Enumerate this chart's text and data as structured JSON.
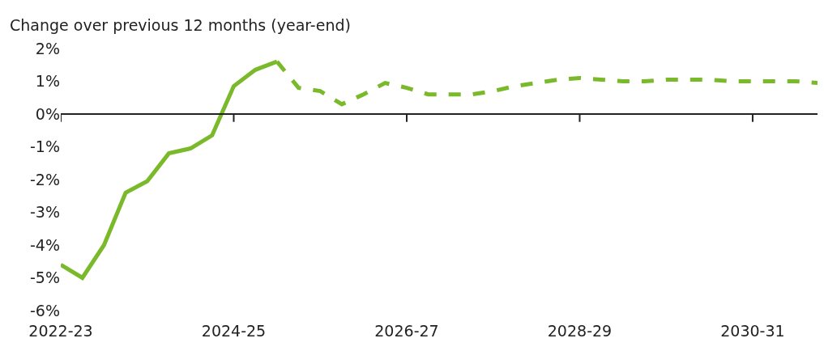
{
  "chart_data": {
    "type": "line",
    "ylabel": "Change over previous 12 months (year-end)",
    "categories": [
      "2022-23",
      null,
      null,
      null,
      null,
      null,
      null,
      null,
      "2024-25",
      null,
      null,
      null,
      null,
      null,
      null,
      null,
      "2026-27",
      null,
      null,
      null,
      null,
      null,
      null,
      null,
      "2028-29",
      null,
      null,
      null,
      null,
      null,
      null,
      null,
      "2030-31",
      null,
      null,
      null
    ],
    "series": [
      {
        "color": "#7ab929",
        "line_style": "solid",
        "values": [
          -4.6,
          -5.0,
          -4.0,
          -2.4,
          -2.05,
          -1.2,
          -1.05,
          -0.65,
          0.85,
          1.35,
          1.6,
          null,
          null,
          null,
          null,
          null,
          null,
          null,
          null,
          null,
          null,
          null,
          null,
          null,
          null,
          null,
          null,
          null,
          null,
          null,
          null,
          null,
          null,
          null,
          null,
          null
        ]
      },
      {
        "color": "#7ab929",
        "line_style": "dashed",
        "values": [
          null,
          null,
          null,
          null,
          null,
          null,
          null,
          null,
          null,
          null,
          1.6,
          0.8,
          0.7,
          0.3,
          0.6,
          0.95,
          0.8,
          0.6,
          0.6,
          0.6,
          0.7,
          0.85,
          0.95,
          1.05,
          1.1,
          1.05,
          1.0,
          1.0,
          1.05,
          1.05,
          1.05,
          1.0,
          1.0,
          1.0,
          1.0,
          0.95
        ]
      }
    ],
    "ylim": [
      -6,
      2
    ],
    "yticks": [
      {
        "value": 2,
        "label": "2%"
      },
      {
        "value": 1,
        "label": "1%"
      },
      {
        "value": 0,
        "label": "0%"
      },
      {
        "value": -1,
        "label": "-1%"
      },
      {
        "value": -2,
        "label": "-2%"
      },
      {
        "value": -3,
        "label": "-3%"
      },
      {
        "value": -4,
        "label": "-4%"
      },
      {
        "value": -5,
        "label": "-5%"
      },
      {
        "value": -6,
        "label": "-6%"
      }
    ],
    "ref_lines": [
      {
        "axis": "y",
        "value": 0,
        "color": "#222222",
        "line_style": "solid"
      }
    ],
    "marker": "none"
  }
}
